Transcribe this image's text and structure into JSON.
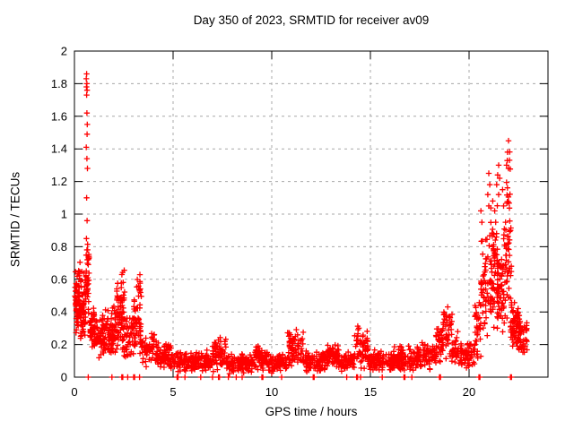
{
  "window": {
    "background": "#ffffff"
  },
  "chart_data": {
    "type": "scatter",
    "title": "Day 350 of 2023, SRMTID for receiver av09",
    "xlabel": "GPS time / hours",
    "ylabel": "SRMTID / TECUs",
    "xlim": [
      0,
      24
    ],
    "ylim": [
      0,
      2
    ],
    "xticks": {
      "values": [
        0,
        5,
        10,
        15,
        20
      ],
      "labels": [
        "0",
        "5",
        "10",
        "15",
        "20"
      ]
    },
    "yticks": {
      "values": [
        0,
        0.2,
        0.4,
        0.6,
        0.8,
        1.0,
        1.2,
        1.4,
        1.6,
        1.8,
        2.0
      ],
      "labels": [
        "0",
        "0.2",
        "0.4",
        "0.6",
        "0.8",
        "1",
        "1.2",
        "1.4",
        "1.6",
        "1.8",
        "2"
      ]
    },
    "grid": {
      "visible": true,
      "style": "dashed"
    },
    "legend": null,
    "colors": {
      "marker": "#ff0000",
      "grid": "#a8a8a8",
      "axis": "#000000",
      "text": "#000000",
      "background": "#ffffff"
    },
    "marker": {
      "shape": "plus",
      "size": 7
    },
    "summary": {
      "morning_spike": {
        "x_hours": 0.62,
        "max_value": 1.86
      },
      "evening_spike": {
        "x_hours": 22.0,
        "max_value": 1.45
      },
      "quiet_band": {
        "x_hours": [
          5,
          18
        ],
        "value_range": [
          0.02,
          0.2
        ]
      },
      "secondary_bumps": [
        {
          "x": 2.4,
          "max": 0.74
        },
        {
          "x": 3.2,
          "max": 0.67
        },
        {
          "x": 11.2,
          "max": 0.3
        },
        {
          "x": 14.5,
          "max": 0.33
        },
        {
          "x": 18.9,
          "max": 0.46
        }
      ]
    },
    "series": [
      {
        "name": "SRMTID",
        "outlier_points": [
          [
            0.62,
            1.86
          ],
          [
            0.6,
            1.83
          ],
          [
            0.63,
            1.8
          ],
          [
            0.61,
            1.78
          ],
          [
            0.64,
            1.76
          ],
          [
            0.62,
            1.73
          ],
          [
            0.63,
            1.62
          ],
          [
            0.65,
            1.55
          ],
          [
            0.64,
            1.49
          ],
          [
            0.6,
            1.41
          ],
          [
            0.63,
            1.34
          ],
          [
            0.66,
            1.28
          ],
          [
            0.62,
            1.1
          ],
          [
            0.64,
            0.96
          ],
          [
            0.61,
            0.85
          ],
          [
            0.63,
            0.78
          ],
          [
            0.65,
            0.72
          ],
          [
            0.6,
            0.65
          ],
          [
            22.0,
            1.45
          ],
          [
            21.95,
            1.38
          ],
          [
            22.05,
            1.33
          ],
          [
            21.9,
            1.3
          ],
          [
            22.0,
            1.28
          ],
          [
            21.5,
            1.3
          ],
          [
            21.45,
            1.24
          ],
          [
            21.55,
            1.22
          ],
          [
            21.4,
            1.18
          ],
          [
            21.5,
            1.12
          ],
          [
            21.0,
            1.25
          ],
          [
            21.05,
            1.18
          ],
          [
            20.95,
            1.12
          ],
          [
            21.0,
            1.05
          ],
          [
            21.3,
            1.02
          ],
          [
            21.35,
            0.95
          ],
          [
            20.6,
            1.02
          ],
          [
            20.65,
            0.95
          ],
          [
            21.2,
            1.08
          ],
          [
            21.7,
            1.15
          ],
          [
            21.75,
            1.05
          ],
          [
            22.1,
            0.9
          ],
          [
            21.85,
            0.95
          ]
        ],
        "zero_points": [
          0.7,
          1.9,
          2.4,
          2.45,
          2.7,
          3.0,
          3.05,
          3.3,
          5.2,
          5.25,
          5.6,
          6.4,
          7.0,
          7.3,
          7.35,
          7.8,
          8.2,
          8.5,
          9.5,
          9.55,
          10.5,
          12.1,
          12.15,
          13.8,
          14.3,
          14.35,
          14.5,
          15.6,
          16.7,
          16.75,
          17.1,
          18.5,
          18.55,
          20.5,
          20.55,
          22.1,
          22.15
        ],
        "density_regions": [
          {
            "x0": 0.02,
            "x1": 0.3,
            "y0": 0.24,
            "y1": 0.6,
            "n": 45
          },
          {
            "x0": 0.05,
            "x1": 0.55,
            "y0": 0.28,
            "y1": 0.74,
            "n": 55
          },
          {
            "x0": 0.3,
            "x1": 0.55,
            "y0": 0.2,
            "y1": 0.5,
            "n": 30
          },
          {
            "x0": 0.55,
            "x1": 0.75,
            "y0": 0.28,
            "y1": 0.92,
            "n": 35
          },
          {
            "x0": 0.75,
            "x1": 1.05,
            "y0": 0.14,
            "y1": 0.45,
            "n": 45
          },
          {
            "x0": 1.05,
            "x1": 1.55,
            "y0": 0.1,
            "y1": 0.4,
            "n": 55
          },
          {
            "x0": 1.55,
            "x1": 2.1,
            "y0": 0.1,
            "y1": 0.46,
            "n": 70
          },
          {
            "x0": 2.1,
            "x1": 2.45,
            "y0": 0.14,
            "y1": 0.62,
            "n": 50
          },
          {
            "x0": 2.3,
            "x1": 2.55,
            "y0": 0.3,
            "y1": 0.74,
            "n": 18
          },
          {
            "x0": 2.45,
            "x1": 3.0,
            "y0": 0.1,
            "y1": 0.38,
            "n": 50
          },
          {
            "x0": 3.0,
            "x1": 3.4,
            "y0": 0.12,
            "y1": 0.58,
            "n": 45
          },
          {
            "x0": 3.15,
            "x1": 3.35,
            "y0": 0.4,
            "y1": 0.67,
            "n": 12
          },
          {
            "x0": 3.4,
            "x1": 4.2,
            "y0": 0.06,
            "y1": 0.28,
            "n": 65
          },
          {
            "x0": 4.2,
            "x1": 5.0,
            "y0": 0.04,
            "y1": 0.22,
            "n": 70
          },
          {
            "x0": 5.0,
            "x1": 7.0,
            "y0": 0.03,
            "y1": 0.17,
            "n": 170
          },
          {
            "x0": 7.0,
            "x1": 7.7,
            "y0": 0.03,
            "y1": 0.26,
            "n": 60
          },
          {
            "x0": 7.7,
            "x1": 9.0,
            "y0": 0.02,
            "y1": 0.15,
            "n": 110
          },
          {
            "x0": 9.0,
            "x1": 9.8,
            "y0": 0.03,
            "y1": 0.2,
            "n": 70
          },
          {
            "x0": 9.8,
            "x1": 10.8,
            "y0": 0.02,
            "y1": 0.15,
            "n": 85
          },
          {
            "x0": 10.8,
            "x1": 11.6,
            "y0": 0.04,
            "y1": 0.3,
            "n": 70
          },
          {
            "x0": 11.6,
            "x1": 12.8,
            "y0": 0.03,
            "y1": 0.17,
            "n": 100
          },
          {
            "x0": 12.8,
            "x1": 13.4,
            "y0": 0.04,
            "y1": 0.23,
            "n": 55
          },
          {
            "x0": 13.4,
            "x1": 14.2,
            "y0": 0.03,
            "y1": 0.17,
            "n": 65
          },
          {
            "x0": 14.2,
            "x1": 14.9,
            "y0": 0.04,
            "y1": 0.33,
            "n": 60
          },
          {
            "x0": 14.9,
            "x1": 16.2,
            "y0": 0.03,
            "y1": 0.17,
            "n": 105
          },
          {
            "x0": 16.2,
            "x1": 17.2,
            "y0": 0.02,
            "y1": 0.2,
            "n": 85
          },
          {
            "x0": 17.2,
            "x1": 18.3,
            "y0": 0.03,
            "y1": 0.22,
            "n": 90
          },
          {
            "x0": 18.3,
            "x1": 18.65,
            "y0": 0.08,
            "y1": 0.32,
            "n": 30
          },
          {
            "x0": 18.6,
            "x1": 19.15,
            "y0": 0.1,
            "y1": 0.46,
            "n": 45
          },
          {
            "x0": 19.1,
            "x1": 19.45,
            "y0": 0.06,
            "y1": 0.3,
            "n": 28
          },
          {
            "x0": 19.45,
            "x1": 20.3,
            "y0": 0.04,
            "y1": 0.22,
            "n": 65
          },
          {
            "x0": 20.3,
            "x1": 20.6,
            "y0": 0.08,
            "y1": 0.5,
            "n": 30
          },
          {
            "x0": 20.55,
            "x1": 21.35,
            "y0": 0.18,
            "y1": 0.95,
            "n": 80
          },
          {
            "x0": 21.05,
            "x1": 21.65,
            "y0": 0.3,
            "y1": 1.15,
            "n": 45
          },
          {
            "x0": 21.35,
            "x1": 21.75,
            "y0": 0.2,
            "y1": 0.8,
            "n": 40
          },
          {
            "x0": 21.75,
            "x1": 22.15,
            "y0": 0.25,
            "y1": 1.1,
            "n": 45
          },
          {
            "x0": 21.9,
            "x1": 22.1,
            "y0": 0.8,
            "y1": 1.4,
            "n": 14
          },
          {
            "x0": 22.1,
            "x1": 22.6,
            "y0": 0.16,
            "y1": 0.5,
            "n": 75
          },
          {
            "x0": 22.45,
            "x1": 22.95,
            "y0": 0.12,
            "y1": 0.38,
            "n": 35
          }
        ]
      }
    ]
  }
}
